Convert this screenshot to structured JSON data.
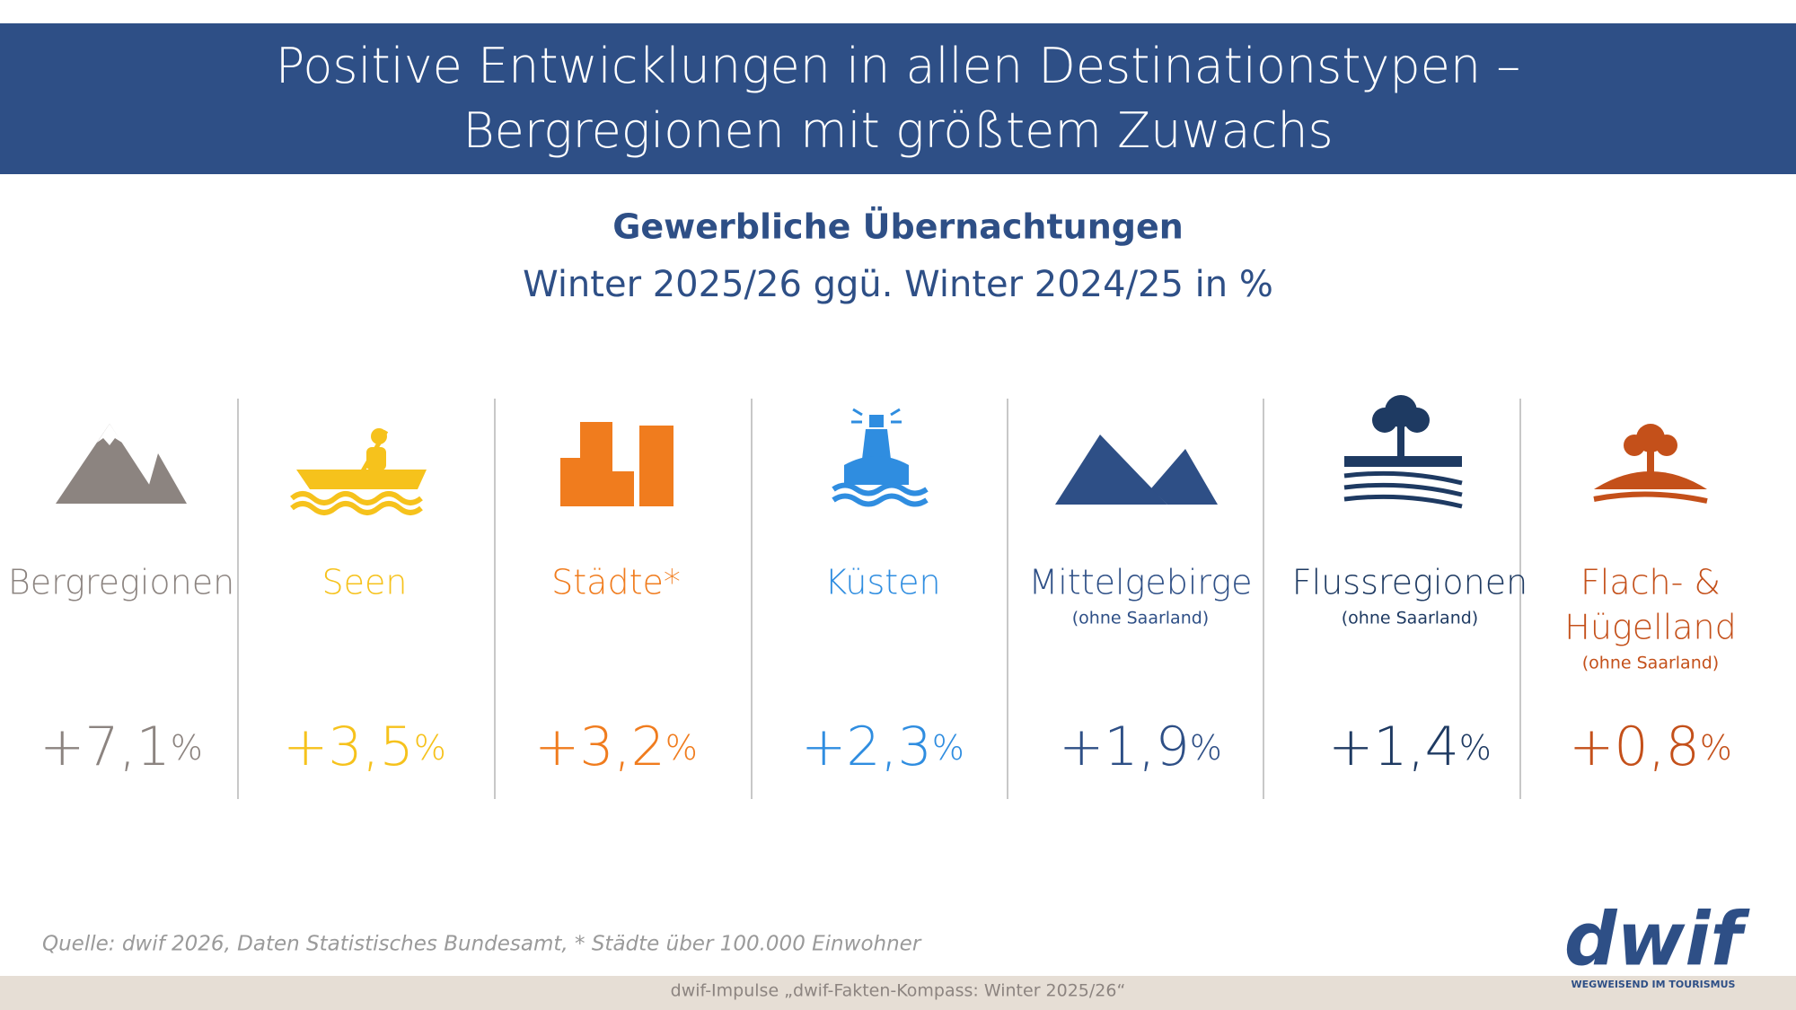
{
  "header": {
    "title": [
      "Positive Entwicklungen in allen Destinationstypen –",
      "Bergregionen mit größtem Zuwachs"
    ]
  },
  "subtitle": "Gewerbliche Übernachtungen",
  "subtitle2": "Winter 2025/26 ggü. Winter 2024/25 in %",
  "columns": [
    {
      "label": [
        "Bergregionen"
      ],
      "value": "+7,1",
      "unit": "%",
      "color": "#8c8480"
    },
    {
      "label": [
        "Seen"
      ],
      "value": "+3,5",
      "unit": "%",
      "color": "#f6c21c"
    },
    {
      "label": [
        "Städte*"
      ],
      "value": "+3,2",
      "unit": "%",
      "color": "#f07c1e"
    },
    {
      "label": [
        "Küsten"
      ],
      "value": "+2,3",
      "unit": "%",
      "color": "#2f8de0"
    },
    {
      "label": [
        "Mittelgebirge"
      ],
      "note": "(ohne Saarland)",
      "value": "+1,9",
      "unit": "%",
      "color": "#2e4f86"
    },
    {
      "label": [
        "Flussregionen"
      ],
      "note": "(ohne Saarland)",
      "value": "+1,4",
      "unit": "%",
      "color": "#1e3a62"
    },
    {
      "label": [
        "Flach- &",
        "Hügelland"
      ],
      "note": "(ohne Saarland)",
      "value": "+0,8",
      "unit": "%",
      "color": "#c4501a"
    }
  ],
  "source": "Quelle: dwif 2026, Daten Statistisches Bundesamt, * Städte über 100.000 Einwohner",
  "footer": "dwif-Impulse „dwif-Fakten-Kompass: Winter 2025/26“",
  "logo": {
    "name": "dwif",
    "tagline": "WEGWEISEND IM TOURISMUS"
  }
}
